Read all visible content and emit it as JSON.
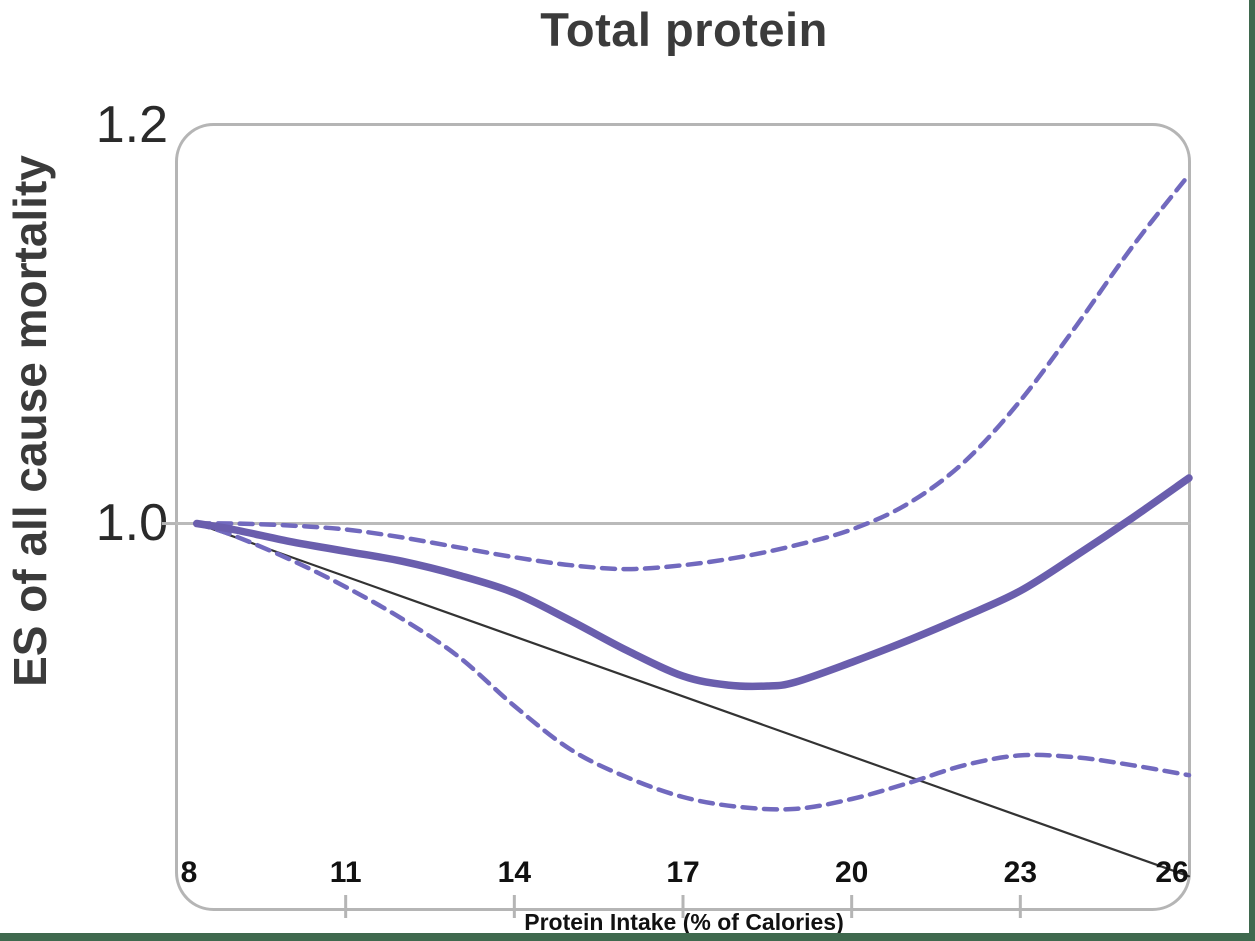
{
  "title": "Total protein",
  "axes": {
    "y_label": "ES of all cause mortality",
    "x_label": "Protein Intake (% of Calories)",
    "x_range": [
      8,
      26
    ],
    "y_range": [
      0.8055,
      1.2011
    ],
    "x_ticks": [
      {
        "label": "8",
        "value": 8,
        "tick_mark": false
      },
      {
        "label": "11",
        "value": 11,
        "tick_mark": true
      },
      {
        "label": "14",
        "value": 14,
        "tick_mark": true
      },
      {
        "label": "17",
        "value": 17,
        "tick_mark": true
      },
      {
        "label": "20",
        "value": 20,
        "tick_mark": true
      },
      {
        "label": "23",
        "value": 23,
        "tick_mark": true
      },
      {
        "label": "26",
        "value": 26,
        "tick_mark": false
      }
    ],
    "y_ticks": [
      {
        "label": "1.2",
        "value": 1.2,
        "tick_mark": false
      },
      {
        "label": "1.0",
        "value": 1.0,
        "tick_mark": true
      }
    ]
  },
  "colors": {
    "curve": "#6A5EAD",
    "confidence_dashed": "#7169BE",
    "linear_reference": "#333333",
    "null_line": "#BABABA",
    "plot_border": "#B5B5B5",
    "accent_border": "#3F694E",
    "title_text": "#3B3B3B",
    "tick_text": "#2A2A2A"
  },
  "chart_data": {
    "type": "line",
    "title": "Total protein",
    "xlabel": "Protein Intake (% of Calories)",
    "ylabel": "ES of all cause mortality",
    "xlim": [
      8,
      26
    ],
    "ylim": [
      0.8,
      1.2
    ],
    "grid": false,
    "legend": "none",
    "series": [
      {
        "name": "Null effect line (ES = 1.0)",
        "style": "null",
        "points": [
          [
            8,
            1.0
          ],
          [
            26,
            1.0
          ]
        ]
      },
      {
        "name": "Linear reference line",
        "style": "reference",
        "points": [
          [
            8.35,
            1.0
          ],
          [
            26,
            0.822
          ]
        ]
      },
      {
        "name": "Lower 95% CI (dashed)",
        "style": "ci",
        "points": [
          [
            8.35,
            1.0
          ],
          [
            9,
            0.994
          ],
          [
            10,
            0.982
          ],
          [
            11,
            0.968
          ],
          [
            12,
            0.952
          ],
          [
            13,
            0.933
          ],
          [
            14,
            0.908
          ],
          [
            15,
            0.886
          ],
          [
            16,
            0.872
          ],
          [
            17,
            0.862
          ],
          [
            18,
            0.857
          ],
          [
            19,
            0.856
          ],
          [
            20,
            0.861
          ],
          [
            21,
            0.869
          ],
          [
            22,
            0.878
          ],
          [
            23,
            0.883
          ],
          [
            24,
            0.882
          ],
          [
            25,
            0.878
          ],
          [
            26,
            0.873
          ]
        ]
      },
      {
        "name": "Upper 95% CI (dashed)",
        "style": "ci",
        "points": [
          [
            8.35,
            1.0
          ],
          [
            9,
            1.0
          ],
          [
            10,
            0.999
          ],
          [
            11,
            0.997
          ],
          [
            12,
            0.993
          ],
          [
            13,
            0.988
          ],
          [
            14,
            0.983
          ],
          [
            15,
            0.979
          ],
          [
            16,
            0.977
          ],
          [
            17,
            0.979
          ],
          [
            18,
            0.983
          ],
          [
            19,
            0.989
          ],
          [
            20,
            0.997
          ],
          [
            21,
            1.01
          ],
          [
            22,
            1.031
          ],
          [
            23,
            1.062
          ],
          [
            24,
            1.1
          ],
          [
            25,
            1.14
          ],
          [
            26,
            1.176
          ]
        ]
      },
      {
        "name": "ES spline estimate",
        "style": "estimate",
        "points": [
          [
            8.35,
            1.0
          ],
          [
            9,
            0.997
          ],
          [
            10,
            0.991
          ],
          [
            11,
            0.986
          ],
          [
            12,
            0.981
          ],
          [
            13,
            0.974
          ],
          [
            14,
            0.965
          ],
          [
            15,
            0.951
          ],
          [
            16,
            0.936
          ],
          [
            17,
            0.923
          ],
          [
            17.8,
            0.9185
          ],
          [
            18.5,
            0.918
          ],
          [
            19,
            0.92
          ],
          [
            20,
            0.93
          ],
          [
            21,
            0.941
          ],
          [
            22,
            0.953
          ],
          [
            23,
            0.966
          ],
          [
            24,
            0.984
          ],
          [
            25,
            1.003
          ],
          [
            26,
            1.023
          ]
        ]
      }
    ]
  }
}
